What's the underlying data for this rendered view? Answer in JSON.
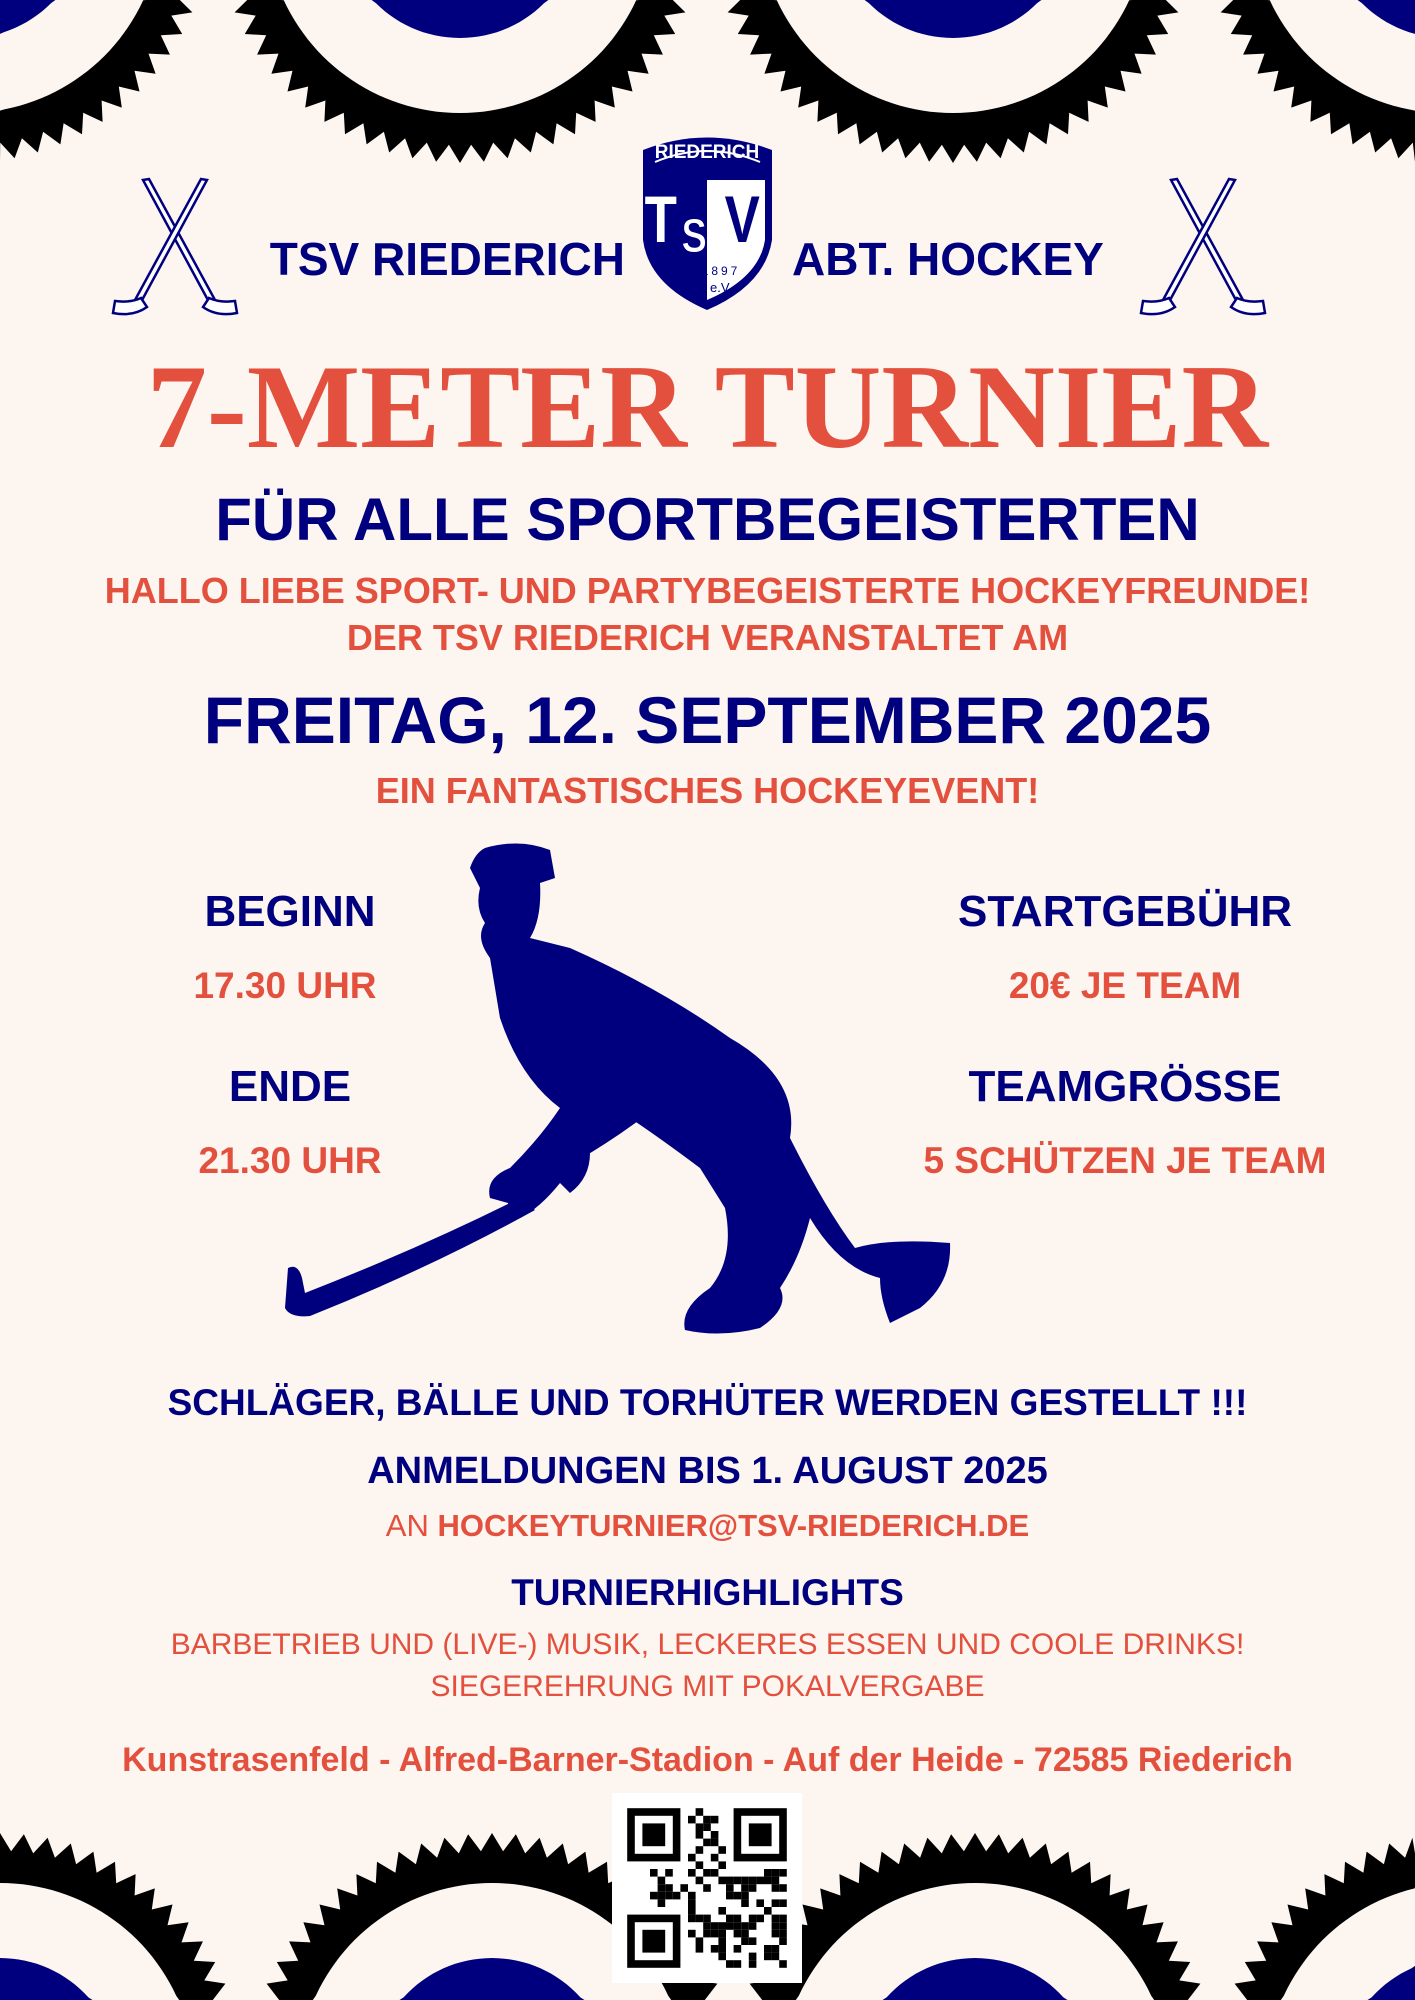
{
  "colors": {
    "navy": "#00007f",
    "red": "#e3503d",
    "background": "#fcf5f0"
  },
  "header": {
    "left_text": "TSV RIEDERICH",
    "right_text": "ABT. HOCKEY",
    "logo": {
      "arc_text": "RIEDERICH",
      "letters": "TSV",
      "year": "1897",
      "suffix": "e.V."
    },
    "icons": [
      "crossed-hockey-sticks-icon",
      "crossed-hockey-sticks-icon"
    ]
  },
  "title": "7-METER TURNIER",
  "subtitle": "FÜR ALLE SPORTBEGEISTERTEN",
  "intro": [
    "HALLO LIEBE SPORT- UND PARTYBEGEISTERTE HOCKEYFREUNDE!",
    "DER TSV RIEDERICH VERANSTALTET AM"
  ],
  "date": "FREITAG, 12. SEPTEMBER 2025",
  "event_tagline": "EIN FANTASTISCHES HOCKEYEVENT!",
  "details": {
    "begin": {
      "label": "BEGINN",
      "value": "17.30 UHR"
    },
    "end": {
      "label": "ENDE",
      "value": "21.30 UHR"
    },
    "fee": {
      "label": "STARTGEBÜHR",
      "value": "20€ JE TEAM"
    },
    "team_size": {
      "label": "TEAMGRÖSSE",
      "value": "5 SCHÜTZEN JE TEAM"
    }
  },
  "equipment_note": "SCHLÄGER, BÄLLE UND TORHÜTER WERDEN GESTELLT !!!",
  "registration": {
    "deadline": "ANMELDUNGEN BIS 1. AUGUST 2025",
    "prefix": "AN",
    "email": "HOCKEYTURNIER@TSV-RIEDERICH.DE"
  },
  "highlights": {
    "heading": "TURNIERHIGHLIGHTS",
    "lines": [
      "BARBETRIEB UND (LIVE-) MUSIK, LECKERES ESSEN UND COOLE DRINKS!",
      "SIEGEREHRUNG MIT POKALVERGABE"
    ]
  },
  "location": "Kunstrasenfeld - Alfred-Barner-Stadion - Auf der Heide - 72585 Riederich"
}
